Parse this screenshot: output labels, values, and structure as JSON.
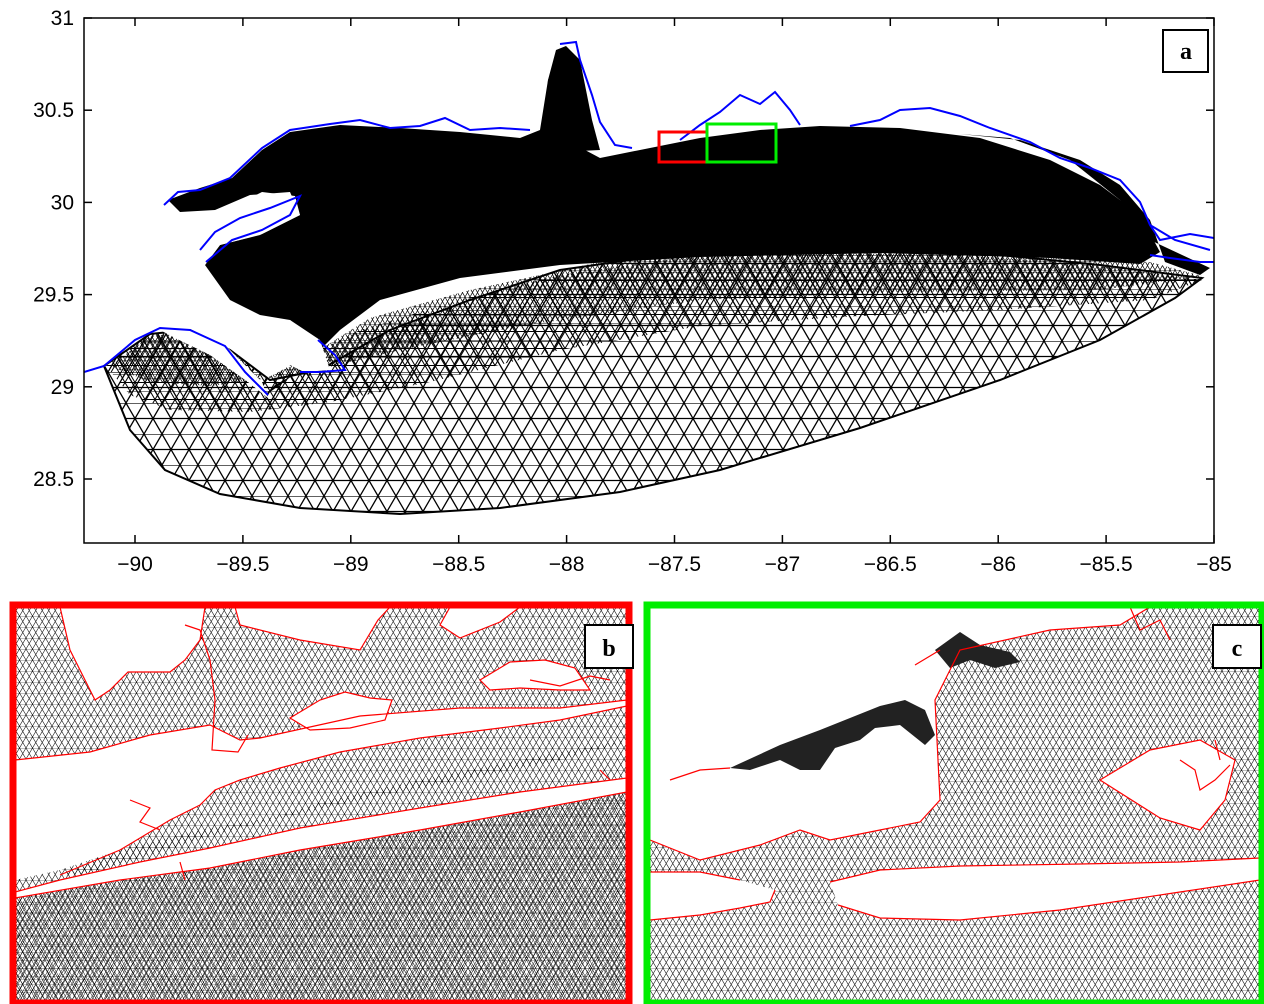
{
  "panels": [
    {
      "id": "a",
      "label": "a",
      "x_ticks": [
        "−90",
        "−89.5",
        "−89",
        "−88.5",
        "−88",
        "−87.5",
        "−87",
        "−86.5",
        "−86",
        "−85.5",
        "−85"
      ],
      "y_ticks": [
        "31",
        "30.5",
        "30",
        "29.5",
        "29",
        "28.5"
      ],
      "x_range": [
        -90.25,
        -85
      ],
      "y_range": [
        28.2,
        31
      ],
      "zoom_boxes": [
        {
          "name": "red",
          "lon": [
            -87.55,
            -87.35
          ],
          "lat": [
            30.22,
            30.38
          ],
          "color": "#ff0000"
        },
        {
          "name": "green",
          "lon": [
            -87.35,
            -87.03
          ],
          "lat": [
            30.22,
            30.43
          ],
          "color": "#00ee00"
        }
      ]
    },
    {
      "id": "b",
      "label": "b",
      "frame_color": "#ff0000"
    },
    {
      "id": "c",
      "label": "c",
      "frame_color": "#00ee00"
    }
  ],
  "colors": {
    "mesh": "#000000",
    "coastline_a": "#0000ff",
    "coastline_bc": "#ff0000"
  }
}
